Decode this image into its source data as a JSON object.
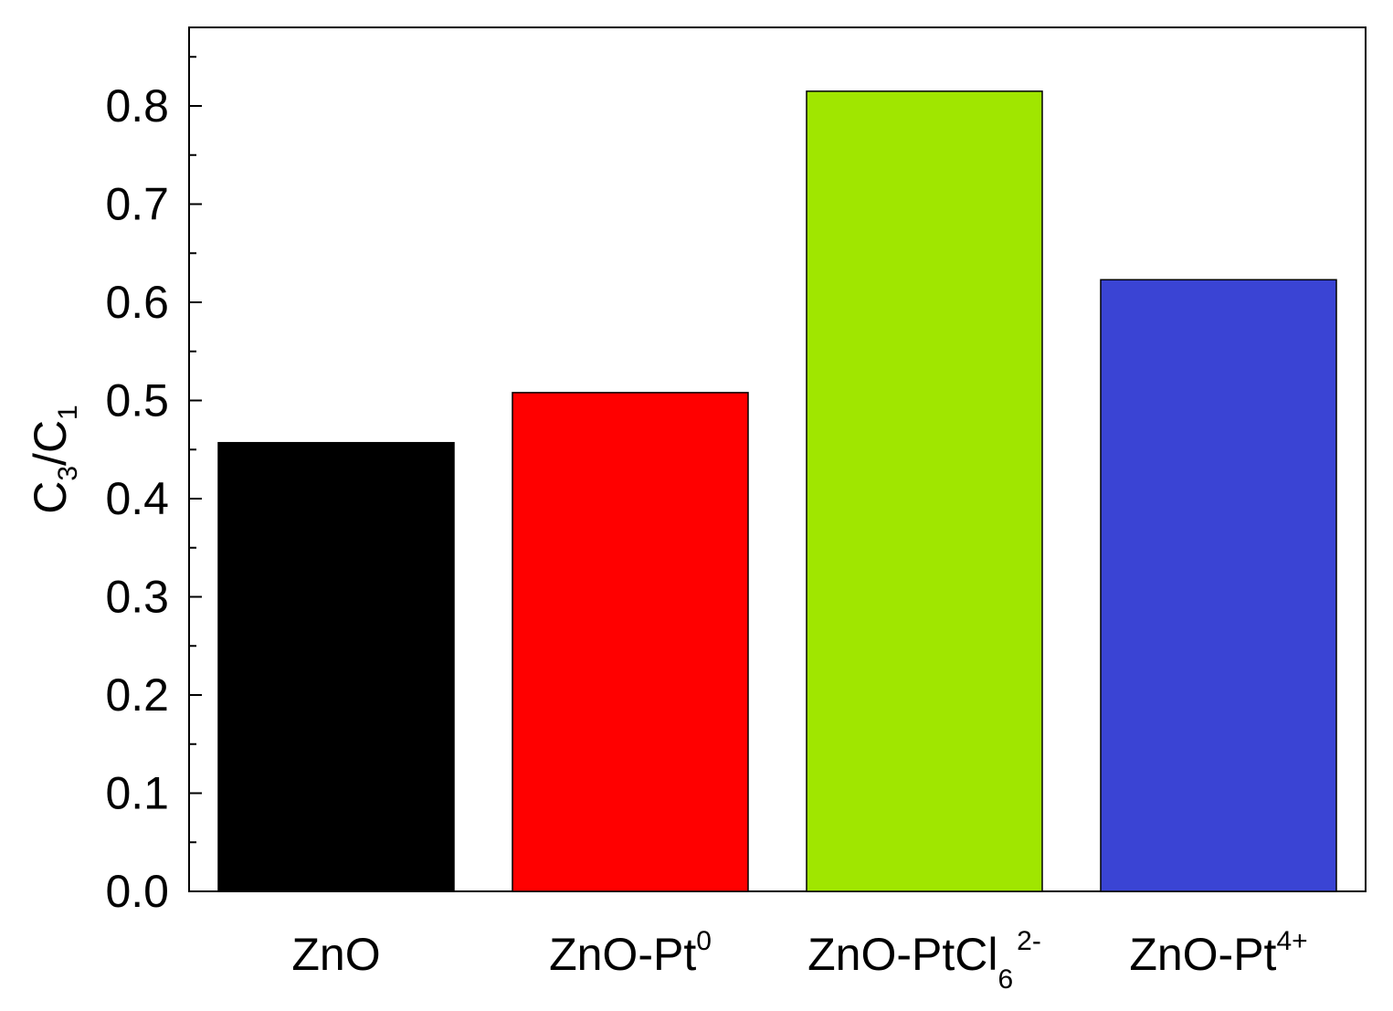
{
  "chart_data": {
    "type": "bar",
    "categories": [
      "ZnO",
      "ZnO-Pt0",
      "ZnO-PtCl62-",
      "ZnO-Pt4+"
    ],
    "category_labels": [
      {
        "base": "ZnO",
        "sub": "",
        "sup": ""
      },
      {
        "base": "ZnO-Pt",
        "sub": "",
        "sup": "0"
      },
      {
        "base": "ZnO-PtCl",
        "sub": "6",
        "sup": "2-"
      },
      {
        "base": "ZnO-Pt",
        "sub": "",
        "sup": "4+"
      }
    ],
    "values": [
      0.457,
      0.508,
      0.815,
      0.623
    ],
    "colors": [
      "#000000",
      "#ff0000",
      "#a0e600",
      "#3a44d4"
    ],
    "ylabel": {
      "c": "C",
      "sub1": "3",
      "slash": "/C",
      "sub2": "1"
    },
    "ylim": [
      0.0,
      0.88
    ],
    "yticks": [
      "0.0",
      "0.1",
      "0.2",
      "0.3",
      "0.4",
      "0.5",
      "0.6",
      "0.7",
      "0.8"
    ],
    "grid": false
  }
}
